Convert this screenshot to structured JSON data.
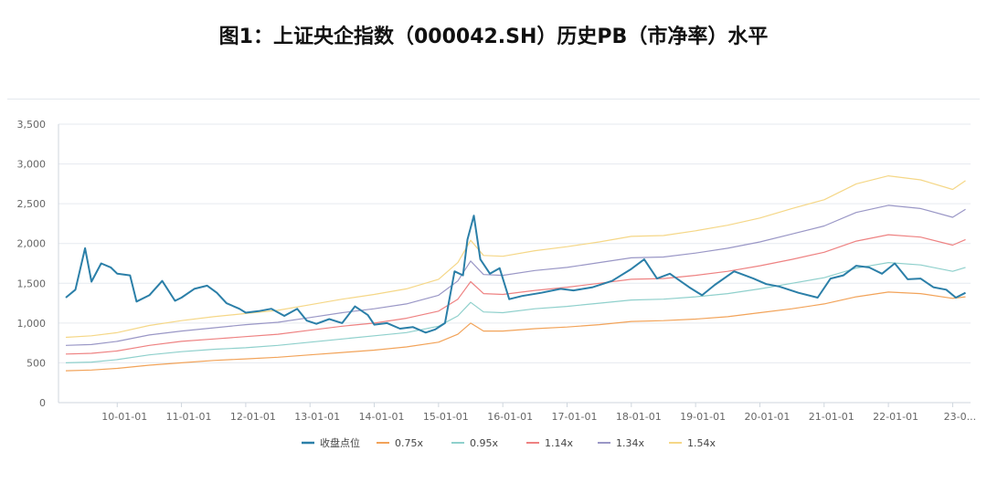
{
  "chart_data": {
    "type": "line",
    "title": "图1：上证央企指数（000042.SH）历史PB（市净率）水平",
    "xlabel": "",
    "ylabel": "",
    "ylim": [
      0,
      3500
    ],
    "y_ticks": [
      "3,500",
      "3,000",
      "2,500",
      "2,000",
      "1,500",
      "1,000",
      "500",
      "0"
    ],
    "y_tick_values": [
      3500,
      3000,
      2500,
      2000,
      1500,
      1000,
      500,
      0
    ],
    "x_range": [
      2009.2,
      2023.25
    ],
    "x_ticks": [
      "10-01-01",
      "11-01-01",
      "12-01-01",
      "13-01-01",
      "14-01-01",
      "15-01-01",
      "16-01-01",
      "17-01-01",
      "18-01-01",
      "19-01-01",
      "20-01-01",
      "21-01-01",
      "22-01-01",
      "23-0..."
    ],
    "x_tick_values": [
      2010,
      2011,
      2012,
      2013,
      2014,
      2015,
      2016,
      2017,
      2018,
      2019,
      2020,
      2021,
      2022,
      2023
    ],
    "grid": "horizontal",
    "legend_position": "bottom",
    "series": [
      {
        "name": "收盘点位",
        "color": "#2b7fa8",
        "x": [
          2009.2,
          2009.35,
          2009.5,
          2009.6,
          2009.75,
          2009.9,
          2010.0,
          2010.2,
          2010.3,
          2010.5,
          2010.7,
          2010.9,
          2011.0,
          2011.2,
          2011.4,
          2011.55,
          2011.7,
          2011.9,
          2012.0,
          2012.2,
          2012.4,
          2012.6,
          2012.8,
          2012.95,
          2013.1,
          2013.3,
          2013.5,
          2013.7,
          2013.9,
          2014.0,
          2014.2,
          2014.4,
          2014.6,
          2014.8,
          2014.95,
          2015.1,
          2015.25,
          2015.38,
          2015.45,
          2015.55,
          2015.65,
          2015.8,
          2015.95,
          2016.1,
          2016.3,
          2016.6,
          2016.9,
          2017.1,
          2017.4,
          2017.7,
          2018.0,
          2018.2,
          2018.4,
          2018.6,
          2018.9,
          2019.1,
          2019.3,
          2019.6,
          2019.9,
          2020.1,
          2020.3,
          2020.6,
          2020.9,
          2021.1,
          2021.3,
          2021.5,
          2021.7,
          2021.9,
          2022.1,
          2022.3,
          2022.5,
          2022.7,
          2022.9,
          2023.05,
          2023.2
        ],
        "values": [
          1320,
          1420,
          1940,
          1520,
          1750,
          1700,
          1620,
          1600,
          1270,
          1350,
          1530,
          1280,
          1320,
          1430,
          1470,
          1380,
          1250,
          1180,
          1130,
          1150,
          1180,
          1090,
          1180,
          1030,
          990,
          1050,
          1000,
          1210,
          1100,
          980,
          1000,
          930,
          950,
          880,
          920,
          1000,
          1650,
          1600,
          2050,
          2350,
          1800,
          1620,
          1690,
          1300,
          1340,
          1380,
          1430,
          1410,
          1450,
          1530,
          1680,
          1800,
          1560,
          1620,
          1450,
          1350,
          1480,
          1650,
          1560,
          1490,
          1460,
          1380,
          1320,
          1560,
          1600,
          1720,
          1700,
          1620,
          1750,
          1550,
          1560,
          1450,
          1420,
          1320,
          1380
        ]
      },
      {
        "name": "0.75x",
        "color": "#f2a359",
        "x": [
          2009.2,
          2009.6,
          2010.0,
          2010.5,
          2011.0,
          2011.5,
          2012.0,
          2012.5,
          2013.0,
          2013.5,
          2014.0,
          2014.5,
          2015.0,
          2015.3,
          2015.5,
          2015.7,
          2016.0,
          2016.5,
          2017.0,
          2017.5,
          2018.0,
          2018.5,
          2019.0,
          2019.5,
          2020.0,
          2020.5,
          2021.0,
          2021.5,
          2022.0,
          2022.5,
          2023.0,
          2023.2
        ],
        "values": [
          400,
          410,
          430,
          470,
          500,
          530,
          550,
          570,
          600,
          630,
          660,
          700,
          760,
          860,
          1000,
          900,
          900,
          930,
          950,
          980,
          1020,
          1030,
          1050,
          1080,
          1130,
          1180,
          1240,
          1330,
          1390,
          1370,
          1310,
          1330
        ]
      },
      {
        "name": "0.95x",
        "color": "#8fd0cc",
        "x": [
          2009.2,
          2009.6,
          2010.0,
          2010.5,
          2011.0,
          2011.5,
          2012.0,
          2012.5,
          2013.0,
          2013.5,
          2014.0,
          2014.5,
          2015.0,
          2015.3,
          2015.5,
          2015.7,
          2016.0,
          2016.5,
          2017.0,
          2017.5,
          2018.0,
          2018.5,
          2019.0,
          2019.5,
          2020.0,
          2020.5,
          2021.0,
          2021.5,
          2022.0,
          2022.5,
          2023.0,
          2023.2
        ],
        "values": [
          500,
          510,
          540,
          600,
          640,
          670,
          690,
          720,
          760,
          800,
          840,
          880,
          960,
          1090,
          1260,
          1140,
          1130,
          1180,
          1210,
          1250,
          1290,
          1300,
          1330,
          1370,
          1430,
          1500,
          1570,
          1690,
          1760,
          1730,
          1650,
          1700
        ]
      },
      {
        "name": "1.14x",
        "color": "#ee8282",
        "x": [
          2009.2,
          2009.6,
          2010.0,
          2010.5,
          2011.0,
          2011.5,
          2012.0,
          2012.5,
          2013.0,
          2013.5,
          2014.0,
          2014.5,
          2015.0,
          2015.3,
          2015.5,
          2015.7,
          2016.0,
          2016.5,
          2017.0,
          2017.5,
          2018.0,
          2018.5,
          2019.0,
          2019.5,
          2020.0,
          2020.5,
          2021.0,
          2021.5,
          2022.0,
          2022.5,
          2023.0,
          2023.2
        ],
        "values": [
          610,
          620,
          650,
          720,
          770,
          800,
          830,
          860,
          910,
          960,
          1000,
          1060,
          1150,
          1300,
          1520,
          1370,
          1360,
          1410,
          1450,
          1500,
          1550,
          1560,
          1600,
          1650,
          1720,
          1800,
          1890,
          2030,
          2110,
          2080,
          1980,
          2050
        ]
      },
      {
        "name": "1.34x",
        "color": "#9a97c6",
        "x": [
          2009.2,
          2009.6,
          2010.0,
          2010.5,
          2011.0,
          2011.5,
          2012.0,
          2012.5,
          2013.0,
          2013.5,
          2014.0,
          2014.5,
          2015.0,
          2015.3,
          2015.5,
          2015.7,
          2016.0,
          2016.5,
          2017.0,
          2017.5,
          2018.0,
          2018.5,
          2019.0,
          2019.5,
          2020.0,
          2020.5,
          2021.0,
          2021.5,
          2022.0,
          2022.5,
          2023.0,
          2023.2
        ],
        "values": [
          720,
          730,
          770,
          850,
          900,
          940,
          980,
          1010,
          1070,
          1130,
          1180,
          1240,
          1350,
          1530,
          1780,
          1610,
          1600,
          1660,
          1700,
          1760,
          1820,
          1830,
          1880,
          1940,
          2020,
          2120,
          2220,
          2390,
          2480,
          2440,
          2330,
          2430
        ]
      },
      {
        "name": "1.54x",
        "color": "#f5d787",
        "x": [
          2009.2,
          2009.6,
          2010.0,
          2010.5,
          2011.0,
          2011.5,
          2012.0,
          2012.5,
          2013.0,
          2013.5,
          2014.0,
          2014.5,
          2015.0,
          2015.3,
          2015.5,
          2015.7,
          2016.0,
          2016.5,
          2017.0,
          2017.5,
          2018.0,
          2018.5,
          2019.0,
          2019.5,
          2020.0,
          2020.5,
          2021.0,
          2021.5,
          2022.0,
          2022.5,
          2023.0,
          2023.2
        ],
        "values": [
          820,
          840,
          880,
          970,
          1030,
          1080,
          1120,
          1160,
          1230,
          1300,
          1360,
          1430,
          1550,
          1760,
          2040,
          1850,
          1840,
          1910,
          1960,
          2020,
          2090,
          2100,
          2160,
          2230,
          2320,
          2440,
          2550,
          2750,
          2850,
          2800,
          2680,
          2790
        ]
      }
    ]
  }
}
